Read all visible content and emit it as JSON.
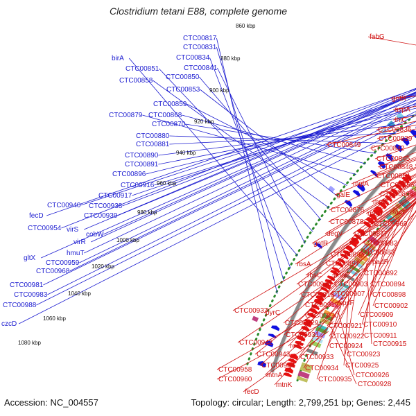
{
  "title": "Clostridium tetani E88, complete genome",
  "accession": "Accession: NC_004557",
  "summary": "Topology: circular; Length: 2,799,251 bp; Genes: 2,445",
  "colors": {
    "forward_label": "#1a1ad0",
    "reverse_label": "#d01010",
    "forward_arrow": "#1010e0",
    "reverse_arrow": "#e81010",
    "backbone": "#8a8a8a",
    "tick_dots": "#2a8a2a"
  },
  "kbp_ticks": [
    "860 kbp",
    "880 kbp",
    "900 kbp",
    "920 kbp",
    "940 kbp",
    "960 kbp",
    "980 kbp",
    "1000 kbp",
    "1020 kbp",
    "1040 kbp",
    "1060 kbp",
    "1080 kbp"
  ],
  "forward_labels": [
    "CTC00817",
    "CTC00831",
    "CTC00834",
    "birA",
    "CTC00841",
    "CTC00851",
    "CTC00850",
    "CTC00858",
    "CTC00853",
    "CTC00859",
    "CTC00879",
    "CTC00868",
    "CTC00870",
    "CTC00880",
    "CTC00881",
    "CTC00890",
    "CTC00891",
    "CTC00896",
    "CTC00916",
    "CTC00917",
    "CTC00940",
    "CTC00938",
    "fecD",
    "CTC00939",
    "CTC00954",
    "virS",
    "cobW",
    "virR",
    "hmuT",
    "gltX",
    "CTC00959",
    "CTC00968",
    "CTC00981",
    "CTC00983",
    "CTC00988",
    "czcD"
  ],
  "reverse_labels": [
    "fabG",
    "gntR",
    "aspA",
    "thiC",
    "CTC00836",
    "CTC00839",
    "CTC00849",
    "CTC00842",
    "CTC00845",
    "CTC00848",
    "CTC00854",
    "mglA",
    "CTC00855",
    "galE",
    "mglC",
    "CTC00860",
    "lacI",
    "rpoD",
    "CTC00876",
    "CTC00869",
    "CTC00878",
    "degV",
    "CTC00877",
    "gntR",
    "CTC00882",
    "CTC00895",
    "CTC00883",
    "CTC00897",
    "padR",
    "rbsA",
    "CTC00892",
    "rbsC",
    "nhaC",
    "CTC00903",
    "CTC00894",
    "CTC00914",
    "CTC00918",
    "CTC00907",
    "CTC00898",
    "kpsF",
    "CTC00919",
    "CTC00902",
    "CTC00937",
    "pyrC",
    "CTC00920",
    "CTC00909",
    "CTC00929",
    "CTC00921",
    "CTC00910",
    "CTC00931",
    "CTC00922",
    "CTC00911",
    "CTC00942",
    "rocC",
    "CTC00924",
    "CTC00915",
    "CTC00943",
    "CTC00933",
    "CTC00923",
    "CTC00944",
    "CTC00934",
    "CTC00925",
    "CTC00958",
    "mtnA",
    "CTC00935",
    "CTC00926",
    "CTC00960",
    "mtnK",
    "CTC00928",
    "fecD"
  ]
}
